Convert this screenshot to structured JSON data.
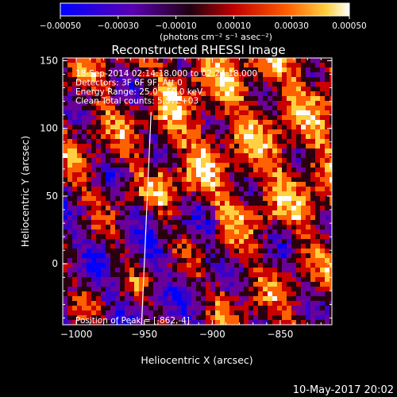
{
  "chart_data": {
    "type": "heatmap",
    "title": "Reconstructed RHESSI Image",
    "xlabel": "Heliocentric X (arcsec)",
    "ylabel": "Heliocentric Y (arcsec)",
    "xlim": [
      -1010,
      -812
    ],
    "ylim": [
      -45,
      152
    ],
    "x_ticks": [
      -1000,
      -950,
      -900,
      -850
    ],
    "y_ticks": [
      0,
      50,
      100,
      150
    ],
    "x_tick_labels": [
      "−1000",
      "−950",
      "−900",
      "−850"
    ],
    "y_tick_labels": [
      "0",
      "50",
      "100",
      "150"
    ],
    "colorbar": {
      "range": [
        -0.0005,
        0.0005
      ],
      "ticks": [
        -0.0005,
        -0.0003,
        -0.0001,
        0.0001,
        0.0003,
        0.0005
      ],
      "tick_labels": [
        "−0.00050",
        "−0.00030",
        "−0.00010",
        "0.00010",
        "0.00030",
        "0.00050"
      ],
      "unit_label": "(photons cm⁻² s⁻¹ asec⁻²)",
      "colors": [
        "#0000ff",
        "#3a00c8",
        "#6a009a",
        "#2a0010",
        "#c80000",
        "#ff6000",
        "#ffd040",
        "#ffffff"
      ]
    },
    "info_lines": [
      "18-Sep-2014 02:14:18.000 to 02:24:18.000",
      "Detectors: 3F 6F 9F, Att 0",
      "Energy Range: 25.0 - 50.0 keV",
      "Clean     Total counts: 5.57E+03"
    ],
    "peak_text": "Position of Peak = [-862,-4]",
    "peak": [
      -862,
      -4
    ],
    "limb_line": [
      [
        -952,
        -45
      ],
      [
        -945,
        112
      ]
    ],
    "grid": false
  },
  "footer": {
    "timestamp": "10-May-2017 20:02"
  }
}
